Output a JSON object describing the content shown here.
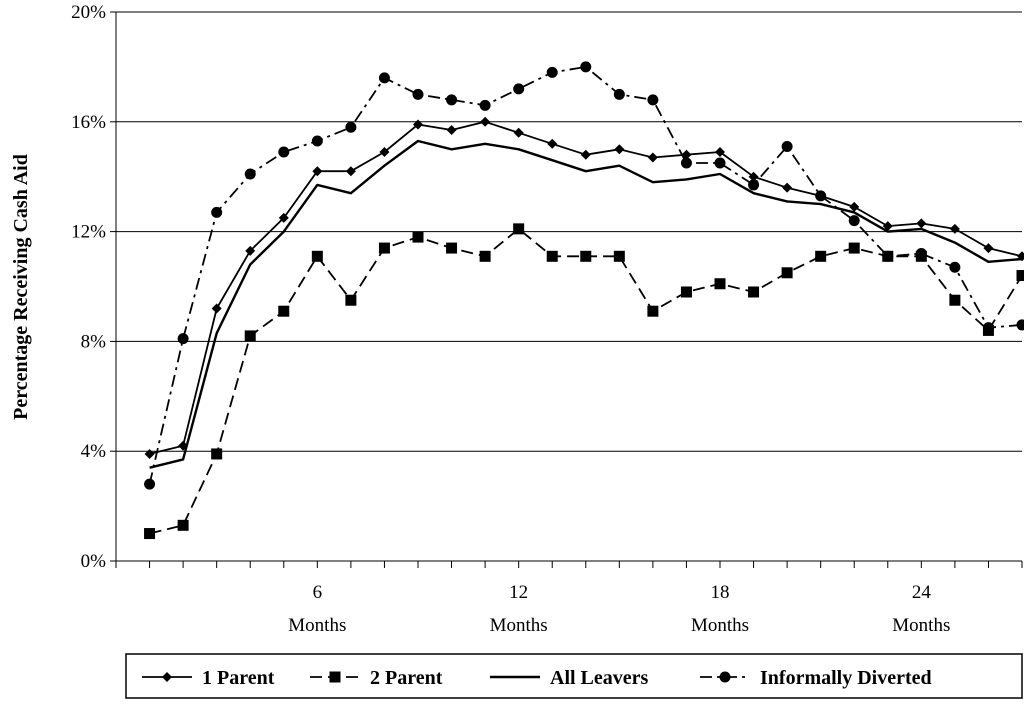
{
  "chart_data": {
    "type": "line",
    "ylabel": "Percentage Receiving Cash Aid",
    "xlabel": "",
    "ylim": [
      0,
      20
    ],
    "xlim": [
      0,
      27
    ],
    "yticks": [
      {
        "value": 0,
        "label": "0%"
      },
      {
        "value": 4,
        "label": "4%"
      },
      {
        "value": 8,
        "label": "8%"
      },
      {
        "value": 12,
        "label": "12%"
      },
      {
        "value": 16,
        "label": "16%"
      },
      {
        "value": 20,
        "label": "20%"
      }
    ],
    "xticks": [
      {
        "value": 6,
        "label": "6",
        "sublabel": "Months"
      },
      {
        "value": 12,
        "label": "12",
        "sublabel": "Months"
      },
      {
        "value": 18,
        "label": "18",
        "sublabel": "Months"
      },
      {
        "value": 24,
        "label": "24",
        "sublabel": "Months"
      }
    ],
    "grid": true,
    "legend_position": "bottom",
    "x": [
      1,
      2,
      3,
      4,
      5,
      6,
      7,
      8,
      9,
      10,
      11,
      12,
      13,
      14,
      15,
      16,
      17,
      18,
      19,
      20,
      21,
      22,
      23,
      24,
      25,
      26,
      27
    ],
    "series": [
      {
        "name": "1 Parent",
        "color": "#000000",
        "dash": "solid",
        "marker": "diamond",
        "values": [
          3.9,
          4.2,
          9.2,
          11.3,
          12.5,
          14.2,
          14.2,
          14.9,
          15.9,
          15.7,
          16.0,
          15.6,
          15.2,
          14.8,
          15.0,
          14.7,
          14.8,
          14.9,
          14.0,
          13.6,
          13.3,
          12.9,
          12.2,
          12.3,
          12.1,
          11.4,
          11.1
        ]
      },
      {
        "name": "2 Parent",
        "color": "#000000",
        "dash": "dashed",
        "marker": "square",
        "values": [
          1.0,
          1.3,
          3.9,
          8.2,
          9.1,
          11.1,
          9.5,
          11.4,
          11.8,
          11.4,
          11.1,
          12.1,
          11.1,
          11.1,
          11.1,
          9.1,
          9.8,
          10.1,
          9.8,
          10.5,
          11.1,
          11.4,
          11.1,
          11.1,
          9.5,
          8.4,
          10.4
        ]
      },
      {
        "name": "All Leavers",
        "color": "#000000",
        "dash": "solid",
        "marker": "none",
        "values": [
          3.4,
          3.7,
          8.3,
          10.8,
          12.0,
          13.7,
          13.4,
          14.4,
          15.3,
          15.0,
          15.2,
          15.0,
          14.6,
          14.2,
          14.4,
          13.8,
          13.9,
          14.1,
          13.4,
          13.1,
          13.0,
          12.7,
          12.0,
          12.1,
          11.6,
          10.9,
          11.0
        ]
      },
      {
        "name": "Informally Diverted",
        "color": "#000000",
        "dash": "dashdot",
        "marker": "circle",
        "values": [
          2.8,
          8.1,
          12.7,
          14.1,
          14.9,
          15.3,
          15.8,
          17.6,
          17.0,
          16.8,
          16.6,
          17.2,
          17.8,
          18.0,
          17.0,
          16.8,
          14.5,
          14.5,
          13.7,
          15.1,
          13.3,
          12.4,
          11.1,
          11.2,
          10.7,
          8.5,
          8.6
        ]
      }
    ]
  }
}
